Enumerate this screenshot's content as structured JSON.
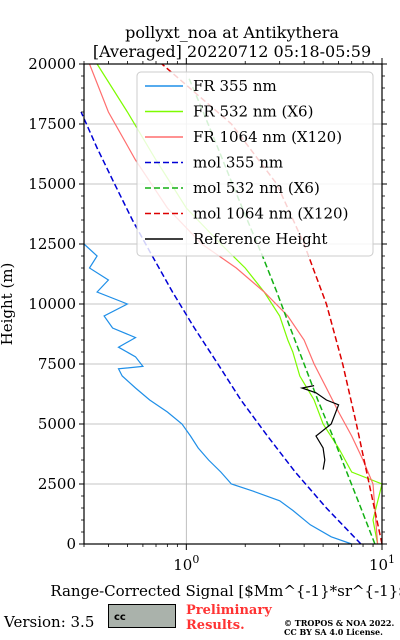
{
  "title_line1": "pollyxt_noa at Antikythera",
  "title_line2": "[Averaged] 20220712 05:18-05:59",
  "xlabel": "Range-Corrected Signal [$Mm^{-1}*sr^{-1}$]",
  "ylabel": "Height (m)",
  "footer": {
    "version": "Version: 3.5",
    "license_badge": "cc",
    "preliminary": "Preliminary\nResults.",
    "copyright_line1": "© TROPOS & NOA 2022.",
    "copyright_line2": "CC BY SA 4.0 License."
  },
  "colors": {
    "fr355": "#1f8fe8",
    "fr532": "#7dfc00",
    "fr1064": "#ff6e6e",
    "mol355": "#0000d6",
    "mol532": "#12b012",
    "mol1064": "#dd0000",
    "ref": "#000000"
  },
  "chart_data": {
    "type": "line",
    "title": "pollyxt_noa at Antikythera\n[Averaged] 20220712 05:18-05:59",
    "xlabel": "Range-Corrected Signal [Mm^-1*sr^-1]",
    "ylabel": "Height (m)",
    "xscale": "log",
    "xlim": [
      0.3,
      10
    ],
    "ylim": [
      0,
      20000
    ],
    "xticks": [
      "10^0",
      "10^1"
    ],
    "yticks": [
      "0",
      "2500",
      "5000",
      "7500",
      "10000",
      "12500",
      "15000",
      "17500",
      "20000"
    ],
    "grid": true,
    "legend_position": "upper-right",
    "series": [
      {
        "name": "FR 355 nm",
        "style": "solid",
        "color_key": "fr355",
        "points": [
          [
            7.0,
            0
          ],
          [
            5.5,
            300
          ],
          [
            4.3,
            800
          ],
          [
            3.5,
            1400
          ],
          [
            3.0,
            1800
          ],
          [
            2.2,
            2200
          ],
          [
            1.7,
            2500
          ],
          [
            1.5,
            3000
          ],
          [
            1.3,
            3500
          ],
          [
            1.15,
            4000
          ],
          [
            1.05,
            4500
          ],
          [
            0.95,
            5000
          ],
          [
            0.8,
            5500
          ],
          [
            0.65,
            6000
          ],
          [
            0.55,
            6500
          ],
          [
            0.47,
            7000
          ],
          [
            0.45,
            7300
          ],
          [
            0.6,
            7400
          ],
          [
            0.55,
            7800
          ],
          [
            0.45,
            8200
          ],
          [
            0.55,
            8600
          ],
          [
            0.42,
            9000
          ],
          [
            0.38,
            9500
          ],
          [
            0.5,
            10000
          ],
          [
            0.35,
            10500
          ],
          [
            0.4,
            11000
          ],
          [
            0.32,
            11500
          ],
          [
            0.35,
            12000
          ],
          [
            0.3,
            12500
          ]
        ]
      },
      {
        "name": "FR 532 nm (X6)",
        "style": "solid",
        "color_key": "fr532",
        "points": [
          [
            9.5,
            0
          ],
          [
            9.0,
            1000
          ],
          [
            10.0,
            2500
          ],
          [
            7.0,
            3000
          ],
          [
            6.0,
            4000
          ],
          [
            5.0,
            5000
          ],
          [
            4.5,
            6000
          ],
          [
            3.8,
            7000
          ],
          [
            3.5,
            8000
          ],
          [
            3.3,
            8500
          ],
          [
            3.0,
            9500
          ],
          [
            2.5,
            10500
          ],
          [
            2.0,
            11500
          ],
          [
            1.5,
            12500
          ],
          [
            1.0,
            14000
          ],
          [
            0.7,
            16000
          ],
          [
            0.5,
            18000
          ],
          [
            0.35,
            20000
          ]
        ]
      },
      {
        "name": "FR 1064 nm (X120)",
        "style": "solid",
        "color_key": "fr1064",
        "points": [
          [
            9.5,
            0
          ],
          [
            9.0,
            2500
          ],
          [
            8.0,
            3500
          ],
          [
            7.0,
            4500
          ],
          [
            6.0,
            5500
          ],
          [
            5.2,
            6500
          ],
          [
            4.5,
            7500
          ],
          [
            4.0,
            8500
          ],
          [
            3.3,
            9500
          ],
          [
            2.5,
            10500
          ],
          [
            1.8,
            11500
          ],
          [
            1.2,
            12500
          ],
          [
            0.8,
            14000
          ],
          [
            0.55,
            16000
          ],
          [
            0.4,
            18000
          ],
          [
            0.32,
            20000
          ]
        ]
      },
      {
        "name": "mol 355 nm",
        "style": "dashed",
        "color_key": "mol355",
        "points": [
          [
            7.8,
            0
          ],
          [
            5.2,
            1500
          ],
          [
            3.6,
            3000
          ],
          [
            2.6,
            4500
          ],
          [
            1.9,
            6000
          ],
          [
            1.45,
            7500
          ],
          [
            1.1,
            9000
          ],
          [
            0.85,
            10500
          ],
          [
            0.67,
            12000
          ],
          [
            0.53,
            13500
          ],
          [
            0.43,
            15000
          ],
          [
            0.35,
            16500
          ],
          [
            0.29,
            18000
          ]
        ]
      },
      {
        "name": "mol 532 nm (X6)",
        "style": "dashed",
        "color_key": "mol532",
        "points": [
          [
            9.2,
            0
          ],
          [
            7.8,
            1500
          ],
          [
            6.6,
            3000
          ],
          [
            5.6,
            4500
          ],
          [
            4.7,
            6000
          ],
          [
            4.0,
            7500
          ],
          [
            3.4,
            9000
          ],
          [
            2.9,
            10500
          ],
          [
            2.45,
            12000
          ],
          [
            2.05,
            13500
          ],
          [
            1.72,
            15000
          ],
          [
            1.45,
            16500
          ],
          [
            1.22,
            18000
          ],
          [
            1.02,
            19500
          ]
        ]
      },
      {
        "name": "mol 1064 nm (X120)",
        "style": "dashed",
        "color_key": "mol1064",
        "points": [
          [
            10.0,
            0
          ],
          [
            8.6,
            2500
          ],
          [
            7.4,
            5000
          ],
          [
            6.3,
            7500
          ],
          [
            5.2,
            10000
          ],
          [
            4.0,
            12500
          ],
          [
            2.9,
            15000
          ],
          [
            1.7,
            17500
          ],
          [
            0.75,
            20000
          ]
        ]
      },
      {
        "name": "Reference Height",
        "style": "solid",
        "color_key": "ref",
        "points": [
          [
            5.0,
            3100
          ],
          [
            5.1,
            3500
          ],
          [
            5.0,
            4000
          ],
          [
            4.6,
            4500
          ],
          [
            5.5,
            5000
          ],
          [
            6.0,
            5800
          ],
          [
            5.2,
            6000
          ],
          [
            4.6,
            6300
          ],
          [
            3.9,
            6500
          ],
          [
            4.5,
            6600
          ]
        ]
      }
    ]
  }
}
